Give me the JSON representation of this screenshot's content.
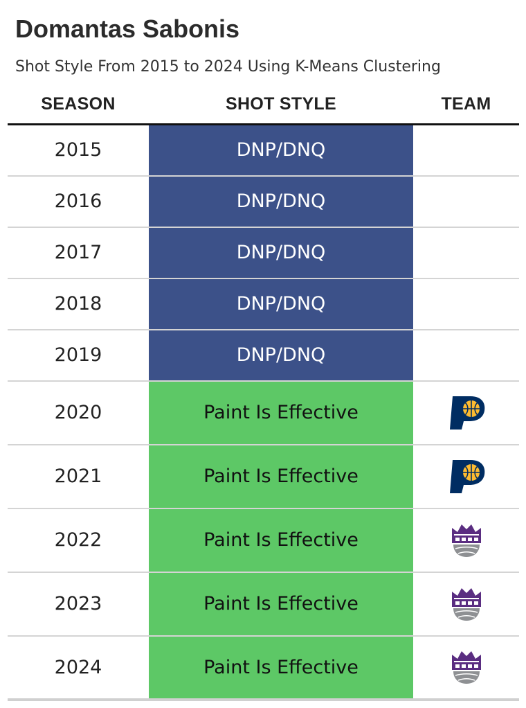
{
  "title": "Domantas Sabonis",
  "subtitle": "Shot Style From 2015 to 2024 Using K-Means Clustering",
  "colors": {
    "dnp": "#3c5189",
    "paint": "#5dc866",
    "dnp_text": "#ffffff",
    "paint_text": "#111111",
    "pacers_navy": "#002d62",
    "pacers_gold": "#fdbb30",
    "kings_purple": "#5a2d81",
    "kings_gray": "#8e9093"
  },
  "chart_data": {
    "type": "table",
    "columns": [
      "SEASON",
      "SHOT STYLE",
      "TEAM"
    ],
    "rows": [
      {
        "season": "2015",
        "style": "DNP/DNQ",
        "team": "",
        "team_icon": ""
      },
      {
        "season": "2016",
        "style": "DNP/DNQ",
        "team": "",
        "team_icon": ""
      },
      {
        "season": "2017",
        "style": "DNP/DNQ",
        "team": "",
        "team_icon": ""
      },
      {
        "season": "2018",
        "style": "DNP/DNQ",
        "team": "",
        "team_icon": ""
      },
      {
        "season": "2019",
        "style": "DNP/DNQ",
        "team": "",
        "team_icon": ""
      },
      {
        "season": "2020",
        "style": "Paint Is Effective",
        "team": "Indiana Pacers",
        "team_icon": "pacers-logo-icon"
      },
      {
        "season": "2021",
        "style": "Paint Is Effective",
        "team": "Indiana Pacers",
        "team_icon": "pacers-logo-icon"
      },
      {
        "season": "2022",
        "style": "Paint Is Effective",
        "team": "Sacramento Kings",
        "team_icon": "kings-logo-icon"
      },
      {
        "season": "2023",
        "style": "Paint Is Effective",
        "team": "Sacramento Kings",
        "team_icon": "kings-logo-icon"
      },
      {
        "season": "2024",
        "style": "Paint Is Effective",
        "team": "Sacramento Kings",
        "team_icon": "kings-logo-icon"
      }
    ]
  }
}
